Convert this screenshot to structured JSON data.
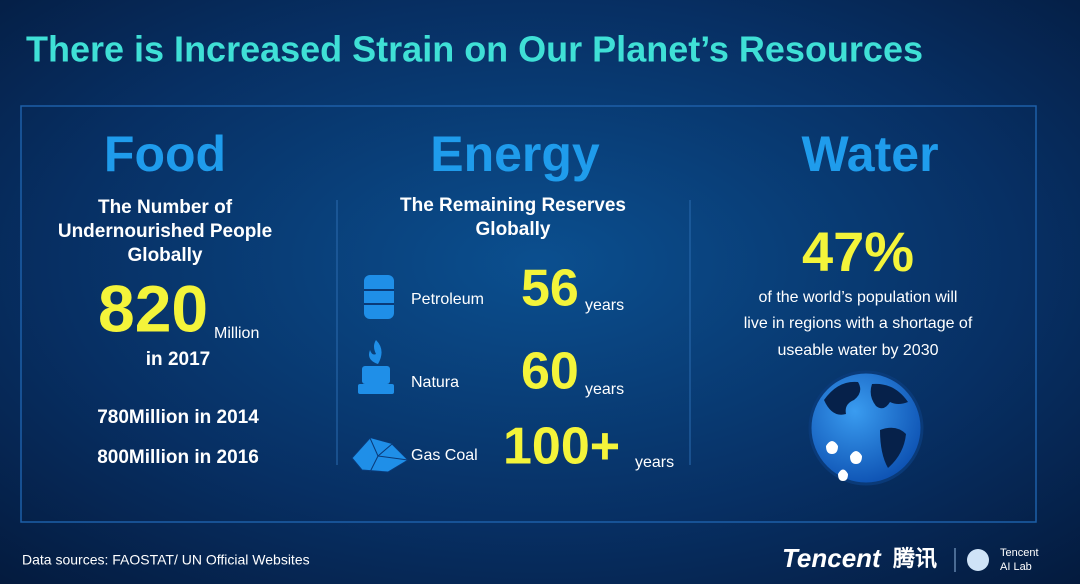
{
  "header": {
    "title": "There is Increased Strain on Our Planet’s Resources"
  },
  "food": {
    "heading": "Food",
    "subtitle": [
      "The Number of",
      "Undernourished People",
      "Globally"
    ],
    "figure": "820",
    "unit": "Million",
    "year": "in 2017",
    "history": [
      "780Million in 2014",
      "800Million in 2016"
    ]
  },
  "energy": {
    "heading": "Energy",
    "subtitle": [
      "The Remaining Reserves",
      "Globally"
    ],
    "items": [
      {
        "label": "Petroleum",
        "figure": "56",
        "unit": "years"
      },
      {
        "label": "Natura",
        "figure": "60",
        "unit": "years"
      },
      {
        "label": "Gas Coal",
        "figure": "100+",
        "unit": "years"
      }
    ]
  },
  "water": {
    "heading": "Water",
    "figure": "47%",
    "text": [
      "of the world’s population will",
      "live in regions with a shortage of",
      "useable water by 2030"
    ]
  },
  "footer": {
    "source": "Data sources: FAOSTAT/ UN Official Websites",
    "brand": "Tencent",
    "brand_cn": "腾讯",
    "lab": [
      "Tencent",
      "AI Lab"
    ]
  }
}
